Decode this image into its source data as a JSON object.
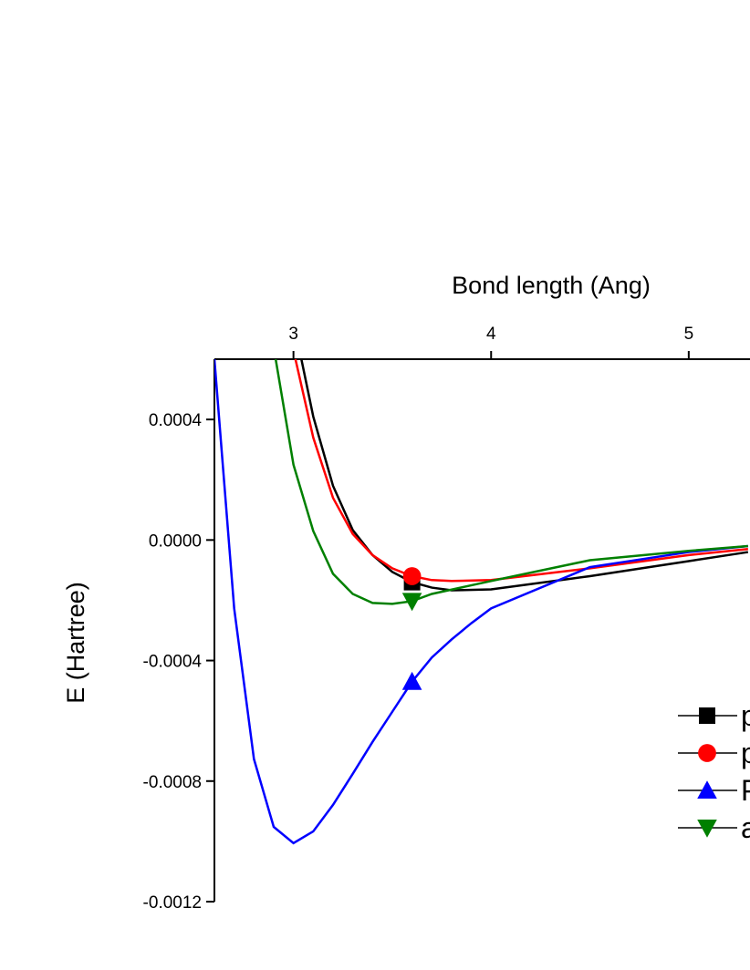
{
  "chart_data": {
    "type": "line",
    "xlabel": "Bond length (Ang)",
    "ylabel": "E (Hartree)",
    "xlim": [
      2.6,
      5.31
    ],
    "xticks": [
      3,
      4,
      5
    ],
    "ylim": [
      -0.0012,
      0.0006
    ],
    "yticks": [
      0.0004,
      {
        "value": 0,
        "label": "0.0000"
      },
      -0.0004,
      -0.0008,
      -0.0012
    ],
    "series": [
      {
        "name": "p",
        "color": "#000000",
        "marker": "square",
        "x": [
          3.04,
          3.1,
          3.2,
          3.3,
          3.4,
          3.5,
          3.6,
          3.7,
          3.8,
          4.0,
          4.5,
          5.0,
          5.3
        ],
        "values": [
          0.0006,
          0.00041,
          0.00018,
          3.3e-05,
          -5e-05,
          -0.000106,
          -0.00014,
          -0.000158,
          -0.000167,
          -0.000164,
          -0.00012,
          -7e-05,
          -4e-05
        ]
      },
      {
        "name": "p",
        "color": "#ff0000",
        "marker": "circle",
        "x": [
          3.01,
          3.1,
          3.2,
          3.3,
          3.4,
          3.5,
          3.6,
          3.7,
          3.8,
          4.0,
          4.5,
          5.0,
          5.3
        ],
        "values": [
          0.0006,
          0.00034,
          0.00014,
          2e-05,
          -5e-05,
          -9.4e-05,
          -0.00012,
          -0.000133,
          -0.000136,
          -0.000133,
          -9.4e-05,
          -5e-05,
          -3e-05
        ]
      },
      {
        "name": "P",
        "color": "#0000ff",
        "marker": "triangle-up",
        "x": [
          2.6,
          2.7,
          2.8,
          2.9,
          3.0,
          3.1,
          3.2,
          3.3,
          3.4,
          3.5,
          3.6,
          3.7,
          3.8,
          3.9,
          4.0,
          4.5,
          5.0,
          5.3
        ],
        "values": [
          0.0006,
          -0.000227,
          -0.000727,
          -0.000952,
          -0.001006,
          -0.000967,
          -0.000879,
          -0.000776,
          -0.00067,
          -0.00057,
          -0.00047,
          -0.00039,
          -0.00033,
          -0.000276,
          -0.000227,
          -9e-05,
          -4e-05,
          -2e-05
        ]
      },
      {
        "name": "a",
        "color": "#008000",
        "marker": "triangle-down",
        "x": [
          2.91,
          3.0,
          3.1,
          3.2,
          3.3,
          3.4,
          3.5,
          3.6,
          3.7,
          4.0,
          4.5,
          5.0,
          5.3
        ],
        "values": [
          0.0006,
          0.00025,
          3e-05,
          -0.000112,
          -0.000179,
          -0.000209,
          -0.000212,
          -0.000203,
          -0.000179,
          -0.000136,
          -6.7e-05,
          -3.6e-05,
          -2e-05
        ]
      }
    ]
  }
}
